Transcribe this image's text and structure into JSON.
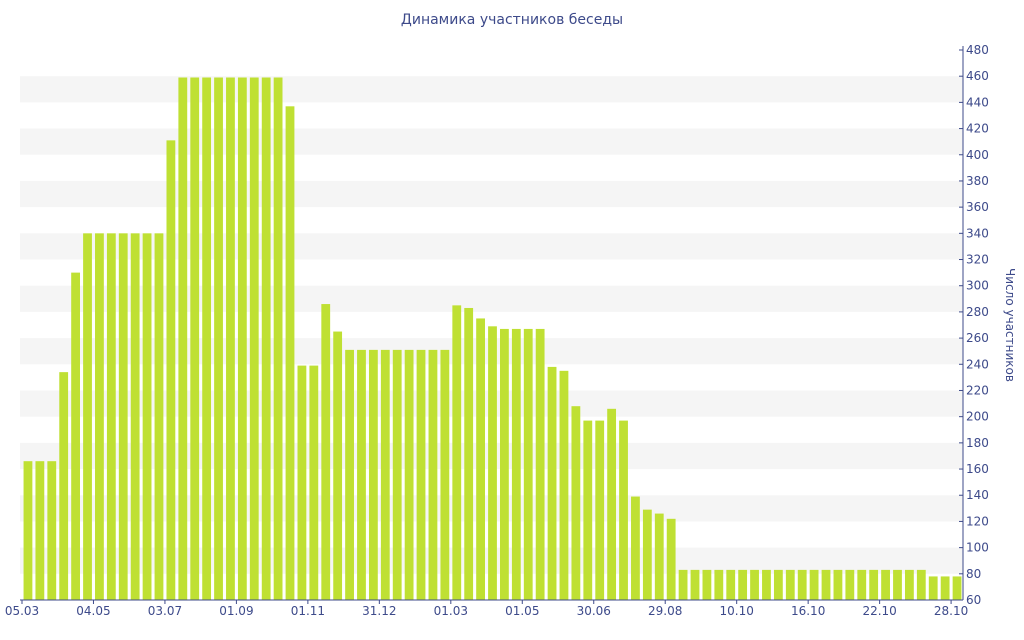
{
  "chart_data": {
    "type": "bar",
    "title": "Динамика участников беседы",
    "ylabel": "Число участников",
    "ylim": [
      60,
      480
    ],
    "y_ticks": [
      60,
      80,
      100,
      120,
      140,
      160,
      180,
      200,
      220,
      240,
      260,
      280,
      300,
      320,
      340,
      360,
      380,
      400,
      420,
      440,
      460,
      480
    ],
    "y_axis_side": "right",
    "grid": "alternating-bands",
    "legend": "none",
    "bar_color": "#bfe033",
    "x_tick_labels": [
      {
        "index": 0,
        "label": "05.03"
      },
      {
        "index": 6,
        "label": "04.05"
      },
      {
        "index": 12,
        "label": "03.07"
      },
      {
        "index": 18,
        "label": "01.09"
      },
      {
        "index": 24,
        "label": "01.11"
      },
      {
        "index": 30,
        "label": "31.12"
      },
      {
        "index": 36,
        "label": "01.03"
      },
      {
        "index": 42,
        "label": "01.05"
      },
      {
        "index": 48,
        "label": "30.06"
      },
      {
        "index": 54,
        "label": "29.08"
      },
      {
        "index": 60,
        "label": "10.10"
      },
      {
        "index": 66,
        "label": "16.10"
      },
      {
        "index": 72,
        "label": "22.10"
      },
      {
        "index": 78,
        "label": "28.10"
      }
    ],
    "values": [
      166,
      166,
      166,
      234,
      310,
      340,
      340,
      340,
      340,
      340,
      340,
      340,
      411,
      459,
      459,
      459,
      459,
      459,
      459,
      459,
      459,
      459,
      437,
      239,
      239,
      286,
      265,
      251,
      251,
      251,
      251,
      251,
      251,
      251,
      251,
      251,
      285,
      283,
      275,
      269,
      267,
      267,
      267,
      267,
      238,
      235,
      208,
      197,
      197,
      206,
      197,
      139,
      129,
      126,
      122,
      83,
      83,
      83,
      83,
      83,
      83,
      83,
      83,
      83,
      83,
      83,
      83,
      83,
      83,
      83,
      83,
      83,
      83,
      83,
      83,
      83,
      78,
      78,
      78
    ]
  }
}
